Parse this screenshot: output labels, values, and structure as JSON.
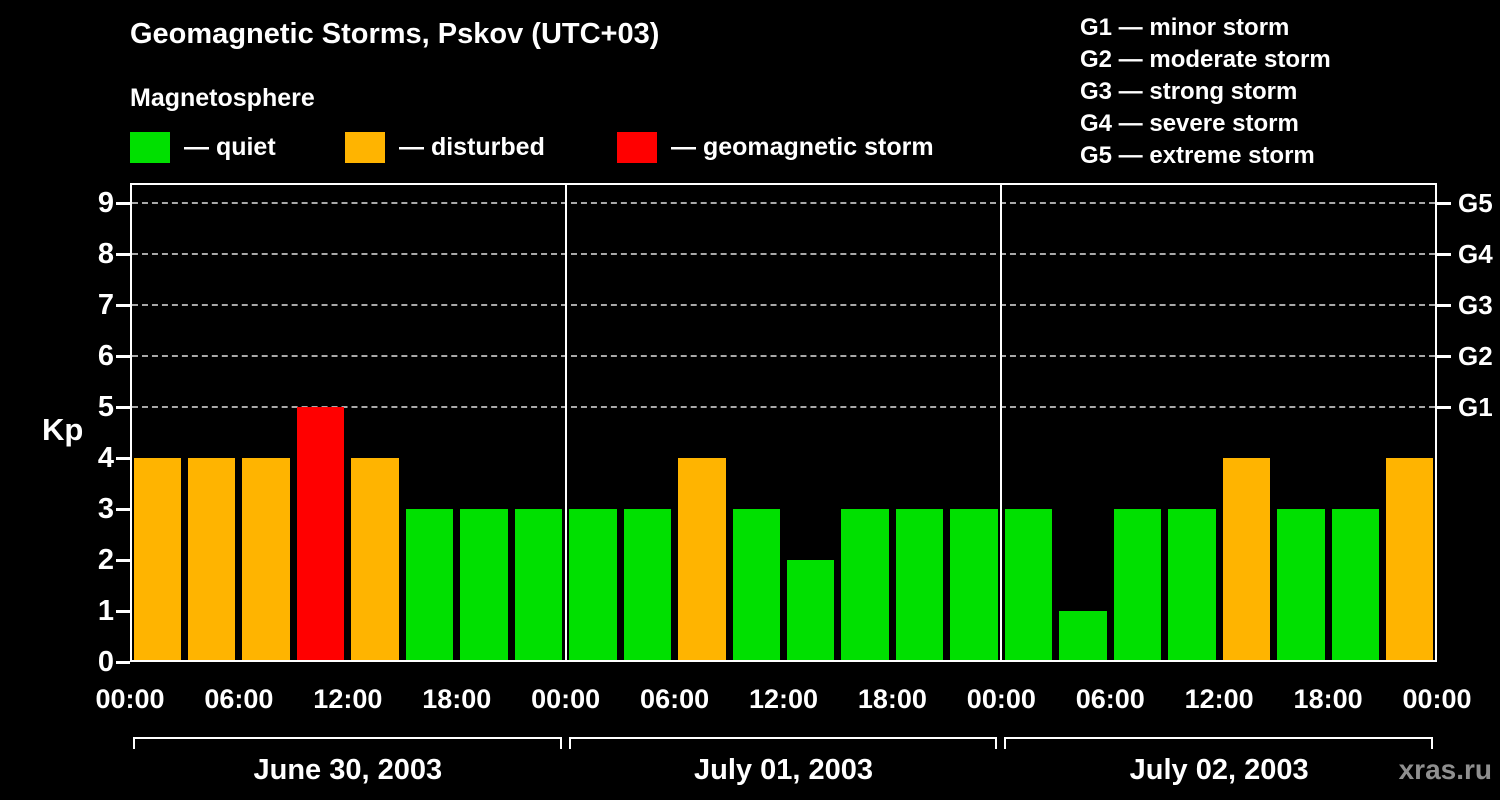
{
  "header": {
    "title": "Geomagnetic Storms, Pskov (UTC+03)",
    "subtitle": "Magnetosphere"
  },
  "legend": {
    "items": [
      {
        "name": "quiet",
        "label": "— quiet",
        "color": "#00e000"
      },
      {
        "name": "disturbed",
        "label": "— disturbed",
        "color": "#ffb400"
      },
      {
        "name": "storm",
        "label": "— geomagnetic storm",
        "color": "#ff0000"
      }
    ]
  },
  "g_scale_legend": {
    "lines": [
      "G1 — minor storm",
      "G2 — moderate storm",
      "G3 — strong storm",
      "G4 — severe storm",
      "G5 — extreme storm"
    ]
  },
  "watermark": "xras.ru",
  "chart_data": {
    "type": "bar",
    "title": "Geomagnetic Storms, Pskov (UTC+03)",
    "ylabel": "Kp",
    "ylim": [
      0,
      9
    ],
    "yticks": [
      0,
      1,
      2,
      3,
      4,
      5,
      6,
      7,
      8,
      9
    ],
    "right_axis": [
      {
        "kp": 5,
        "label": "G1"
      },
      {
        "kp": 6,
        "label": "G2"
      },
      {
        "kp": 7,
        "label": "G3"
      },
      {
        "kp": 8,
        "label": "G4"
      },
      {
        "kp": 9,
        "label": "G5"
      }
    ],
    "grid": "dashed horizontal lines at G levels, legend position top",
    "bar_interval_hours": 3,
    "time_labels": [
      "00:00",
      "06:00",
      "12:00",
      "18:00"
    ],
    "time_tick_hours": [
      0,
      6,
      12,
      18
    ],
    "end_label": "00:00",
    "colors": {
      "quiet": "#00e000",
      "disturbed": "#ffb400",
      "storm": "#ff0000"
    },
    "color_rule": "Kp<=3 quiet (green), Kp=4 disturbed (orange), Kp>=5 geomagnetic storm (red)",
    "days": [
      {
        "date": "June 30, 2003",
        "values": [
          4,
          4,
          4,
          5,
          4,
          3,
          3,
          3
        ]
      },
      {
        "date": "July 01, 2003",
        "values": [
          3,
          3,
          4,
          3,
          2,
          3,
          3,
          3
        ]
      },
      {
        "date": "July 02, 2003",
        "values": [
          3,
          1,
          3,
          3,
          4,
          3,
          3,
          4
        ]
      }
    ]
  }
}
